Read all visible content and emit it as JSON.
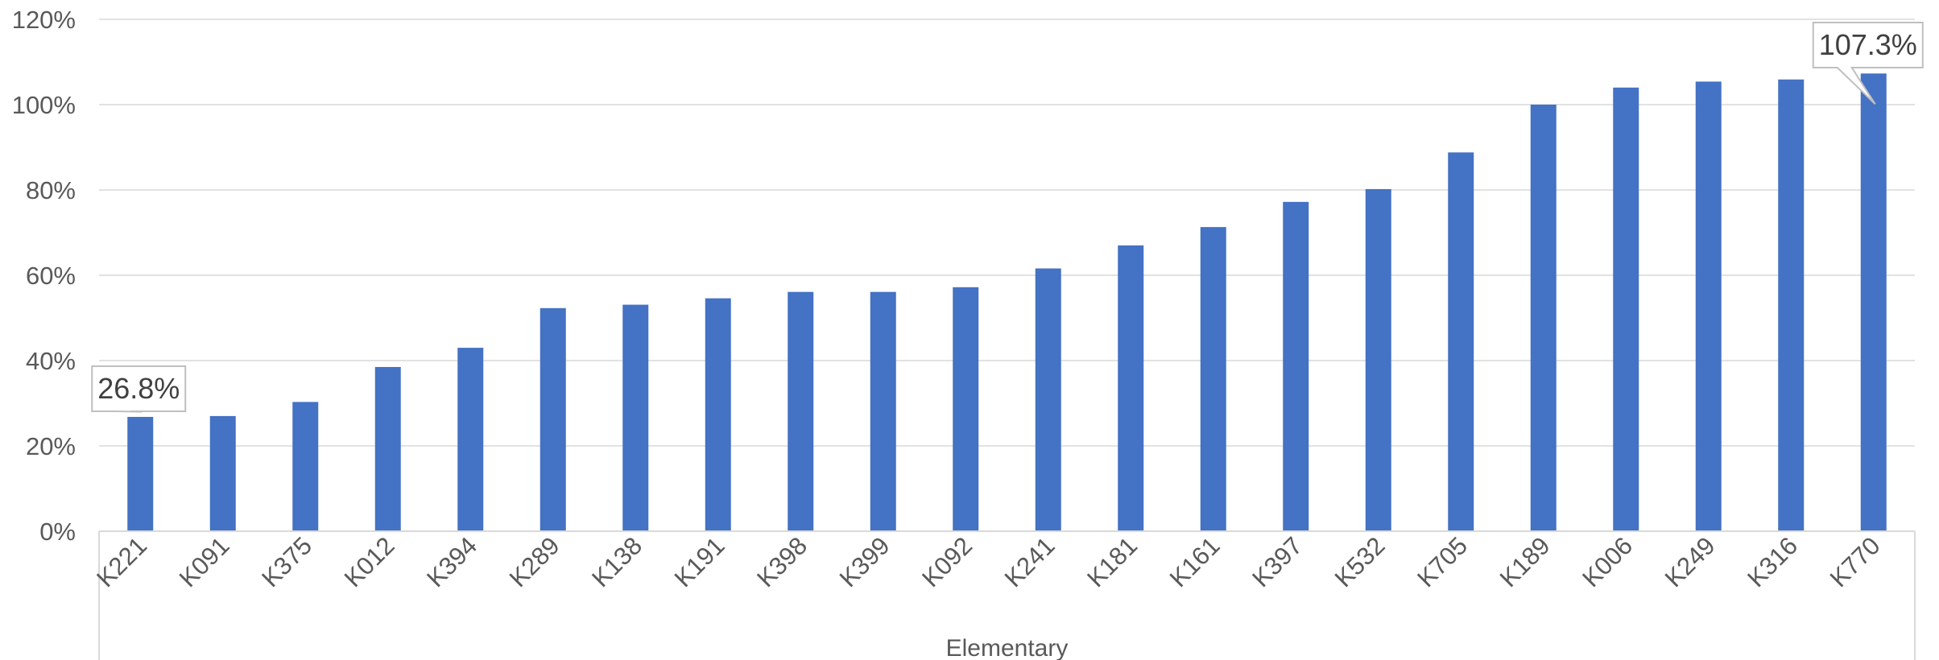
{
  "chart_data": {
    "type": "bar",
    "title": "",
    "xlabel": "",
    "ylabel": "",
    "group_label": "Elementary",
    "categories": [
      "K221",
      "K091",
      "K375",
      "K012",
      "K394",
      "K289",
      "K138",
      "K191",
      "K398",
      "K399",
      "K092",
      "K241",
      "K181",
      "K161",
      "K397",
      "K532",
      "K705",
      "K189",
      "K006",
      "K249",
      "K316",
      "K770"
    ],
    "values": [
      26.8,
      27.0,
      30.3,
      38.5,
      43.0,
      52.3,
      53.1,
      54.6,
      56.1,
      56.1,
      57.2,
      61.6,
      67.0,
      71.3,
      77.2,
      80.2,
      88.8,
      100.0,
      104.0,
      105.4,
      105.9,
      107.3
    ],
    "ylim": [
      0,
      120
    ],
    "yticks": [
      0,
      20,
      40,
      60,
      80,
      100,
      120
    ],
    "ytick_labels": [
      "0%",
      "20%",
      "40%",
      "60%",
      "80%",
      "100%",
      "120%"
    ],
    "grid": true,
    "bar_color": "#4472C4",
    "annotations": [
      {
        "category": "K221",
        "text": "26.8%"
      },
      {
        "category": "K770",
        "text": "107.3%"
      }
    ]
  }
}
